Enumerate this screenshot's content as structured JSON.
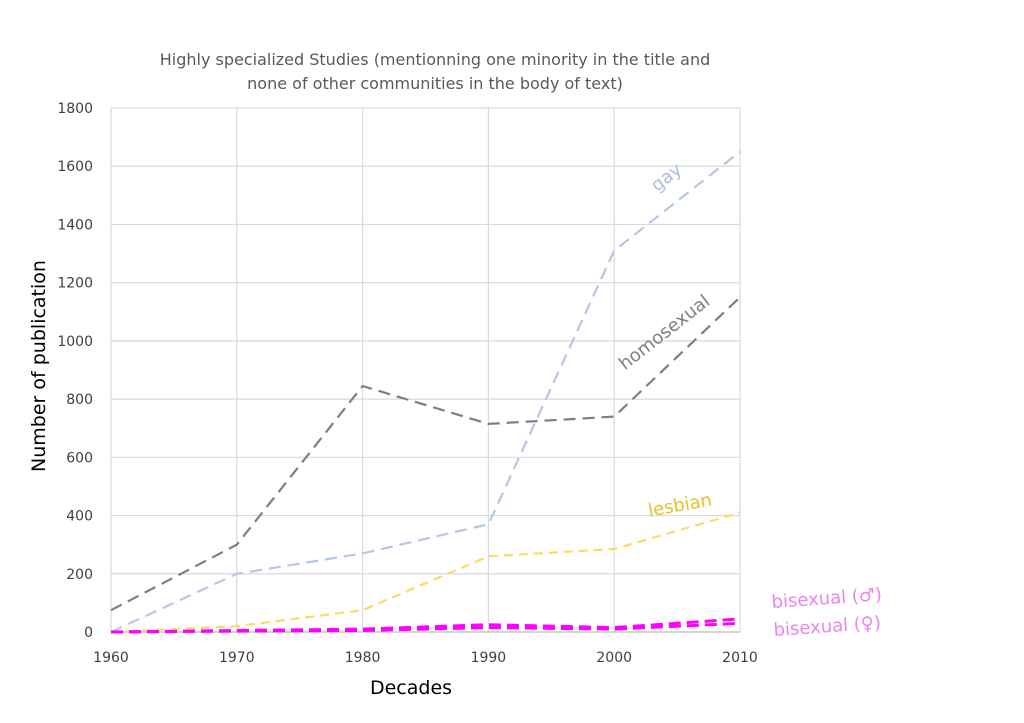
{
  "chart_data": {
    "type": "line",
    "title": [
      "Highly specialized Studies (mentionning one minority in the title and",
      "none of other communities in the body of text)"
    ],
    "xlabel": "Decades",
    "ylabel": "Number of publication",
    "x": [
      1960,
      1970,
      1980,
      1990,
      2000,
      2010
    ],
    "xlim": [
      1960,
      2010
    ],
    "ylim": [
      0,
      1800
    ],
    "yticks": [
      0,
      200,
      400,
      600,
      800,
      1000,
      1200,
      1400,
      1600,
      1800
    ],
    "grid": true,
    "legend": "inline labels",
    "series": [
      {
        "name": "gay",
        "color": "#b4c7e7",
        "label_color": "#a9bfde",
        "values": [
          0,
          200,
          270,
          370,
          1310,
          1650
        ]
      },
      {
        "name": "homosexual",
        "color": "#7f7f7f",
        "label_color": "#7f7f7f",
        "values": [
          75,
          300,
          845,
          715,
          740,
          1150
        ]
      },
      {
        "name": "lesbian",
        "color": "#ffd966",
        "label_color": "#e6c229",
        "values": [
          0,
          20,
          75,
          260,
          285,
          410
        ]
      },
      {
        "name": "bisexual (♂)",
        "color": "#ff00ff",
        "label_color": "#ee82ee",
        "values": [
          0,
          5,
          10,
          25,
          15,
          45
        ]
      },
      {
        "name": "bisexual (♀)",
        "color": "#ff00ff",
        "label_color": "#ee82ee",
        "values": [
          0,
          3,
          5,
          15,
          10,
          30
        ]
      }
    ]
  }
}
